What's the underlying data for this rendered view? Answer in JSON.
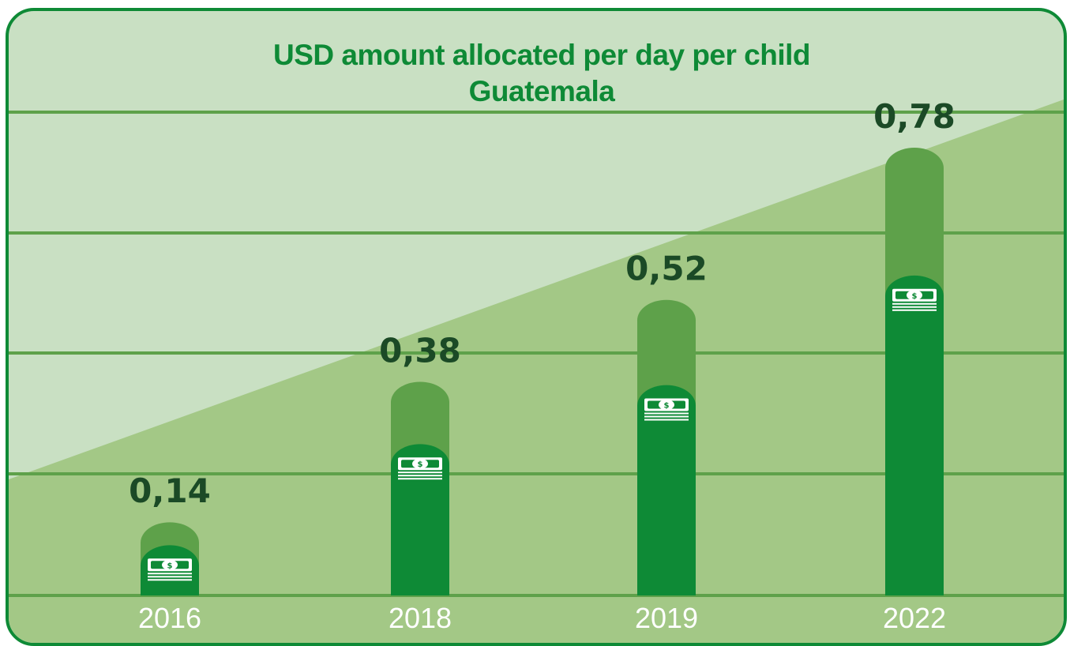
{
  "chart_data": {
    "type": "bar",
    "title": "USD amount allocated per day per child",
    "subtitle": "Guatemala",
    "categories": [
      "2016",
      "2018",
      "2019",
      "2022"
    ],
    "values": [
      0.14,
      0.38,
      0.52,
      0.78
    ],
    "value_labels": [
      "0,14",
      "0,38",
      "0,52",
      "0,78"
    ],
    "xlabel": "",
    "ylabel": "",
    "ylim": [
      0,
      0.85
    ],
    "grid": true,
    "legend": "none",
    "bar_icon": "money-stack-icon"
  },
  "colors": {
    "frame": "#0e8a36",
    "background_light": "#c9e0c3",
    "background_dark": "#a3c886",
    "gridline": "#5ea14a",
    "bar_solid": "#0e8a36",
    "bar_overlay": "#5ea14a",
    "title": "#0e8a36",
    "value_label": "#1b4a26",
    "year_label": "#ffffff"
  }
}
